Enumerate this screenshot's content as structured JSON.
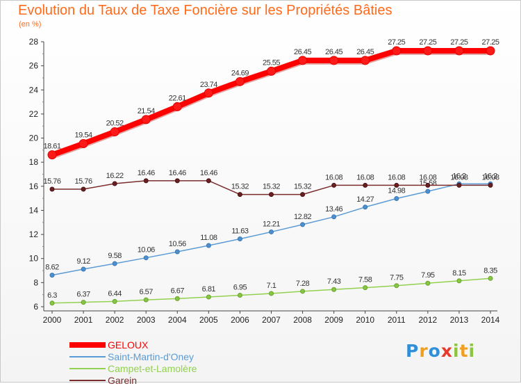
{
  "header": {
    "title": "Evolution du Taux de Taxe Foncière sur les Propriétés Bâties",
    "unit": "(en %)"
  },
  "logo": {
    "text": "Proxiti"
  },
  "chart_data": {
    "type": "line",
    "title": "Evolution du Taux de Taxe Foncière sur les Propriétés Bâties",
    "ylabel": "(en %)",
    "xlabel": "",
    "x": [
      "2000",
      "2001",
      "2002",
      "2003",
      "2004",
      "2005",
      "2006",
      "2007",
      "2008",
      "2009",
      "2010",
      "2011",
      "2012",
      "2013",
      "2014"
    ],
    "ylim": [
      6,
      28
    ],
    "yticks": [
      "6",
      "8",
      "10",
      "12",
      "14",
      "16",
      "18",
      "20",
      "22",
      "24",
      "26",
      "28"
    ],
    "grid": false,
    "legend": "bottom-left",
    "series": [
      {
        "name": "GELOUX",
        "color": "#ff0000",
        "values": [
          18.61,
          19.54,
          20.52,
          21.54,
          22.61,
          23.74,
          24.69,
          25.55,
          26.45,
          26.45,
          26.45,
          27.25,
          27.25,
          27.25,
          27.25
        ],
        "labels": [
          "18.61",
          "19.54",
          "20.52",
          "21.54",
          "22.61",
          "23.74",
          "24.69",
          "25.55",
          "26.45",
          "26.45",
          "26.45",
          "27.25",
          "27.25",
          "27.25",
          "27.25"
        ]
      },
      {
        "name": "Saint-Martin-d'Oney",
        "color": "#5b9bd5",
        "values": [
          8.62,
          9.12,
          9.58,
          10.06,
          10.56,
          11.08,
          11.63,
          12.21,
          12.82,
          13.46,
          14.27,
          14.98,
          15.58,
          16.2,
          16.2
        ],
        "labels": [
          "8.62",
          "9.12",
          "9.58",
          "10.06",
          "10.56",
          "11.08",
          "11.63",
          "12.21",
          "12.82",
          "13.46",
          "14.27",
          "14.98",
          "15.58",
          "16.2",
          "16.2"
        ]
      },
      {
        "name": "Campet-et-Lamolère",
        "color": "#92d050",
        "values": [
          6.3,
          6.37,
          6.44,
          6.57,
          6.67,
          6.81,
          6.95,
          7.1,
          7.28,
          7.43,
          7.58,
          7.75,
          7.95,
          8.15,
          8.35
        ],
        "labels": [
          "6.3",
          "6.37",
          "6.44",
          "6.57",
          "6.67",
          "6.81",
          "6.95",
          "7.1",
          "7.28",
          "7.43",
          "7.58",
          "7.75",
          "7.95",
          "8.15",
          "8.35"
        ]
      },
      {
        "name": "Garein",
        "color": "#7b2c2c",
        "values": [
          15.76,
          15.76,
          16.22,
          16.46,
          16.46,
          16.46,
          15.32,
          15.32,
          15.32,
          16.08,
          16.08,
          16.08,
          16.08,
          16.08,
          16.08
        ],
        "labels": [
          "15.76",
          "15.76",
          "16.22",
          "16.46",
          "16.46",
          "16.46",
          "15.32",
          "15.32",
          "15.32",
          "16.08",
          "16.08",
          "16.08",
          "16.08",
          "16.08",
          "16.08"
        ]
      }
    ]
  }
}
